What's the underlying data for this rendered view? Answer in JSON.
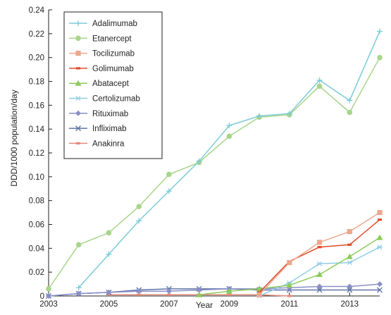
{
  "chart_data": {
    "type": "line",
    "title": "",
    "xlabel": "Year",
    "ylabel": "DDD/1000 population/day",
    "xlim": [
      2003,
      2014
    ],
    "ylim": [
      0,
      0.24
    ],
    "x_ticks": [
      2003,
      2005,
      2007,
      2009,
      2011,
      2013
    ],
    "y_ticks": [
      0,
      0.02,
      0.04,
      0.06,
      0.08,
      0.1,
      0.12,
      0.14,
      0.16,
      0.18,
      0.2,
      0.22,
      0.24
    ],
    "y_tick_labels": [
      "0",
      "0.02",
      "0.04",
      "0.06",
      "0.08",
      "0.10",
      "0.12",
      "0.14",
      "0.16",
      "0.18",
      "0.20",
      "0.22",
      "0.24"
    ],
    "x_tick_labels": [
      "2003",
      "2005",
      "2007",
      "2009",
      "2011",
      "2013"
    ],
    "grid": false,
    "legend_position": "top-left",
    "series": [
      {
        "name": "Adalimumab",
        "color": "#7ccbd6",
        "marker": "plus",
        "x": [
          2004,
          2005,
          2006,
          2007,
          2008,
          2009,
          2010,
          2011,
          2012,
          2013,
          2014
        ],
        "values": [
          0.007,
          0.035,
          0.063,
          0.088,
          0.113,
          0.143,
          0.151,
          0.153,
          0.181,
          0.164,
          0.222
        ]
      },
      {
        "name": "Etanercept",
        "color": "#a8d58a",
        "marker": "circle",
        "x": [
          2003,
          2004,
          2005,
          2006,
          2007,
          2008,
          2009,
          2010,
          2011,
          2012,
          2013,
          2014
        ],
        "values": [
          0.006,
          0.043,
          0.053,
          0.075,
          0.102,
          0.112,
          0.134,
          0.15,
          0.152,
          0.176,
          0.154,
          0.2
        ]
      },
      {
        "name": "Tocilizumab",
        "color": "#eba88c",
        "marker": "square",
        "x": [
          2010,
          2011,
          2012,
          2013,
          2014
        ],
        "values": [
          0.001,
          0.028,
          0.045,
          0.054,
          0.07
        ]
      },
      {
        "name": "Golimumab",
        "color": "#e04a2a",
        "marker": "dash",
        "x": [
          2010,
          2011,
          2012,
          2013,
          2014
        ],
        "values": [
          0.003,
          0.029,
          0.041,
          0.043,
          0.064
        ]
      },
      {
        "name": "Abatacept",
        "color": "#8ccb5c",
        "marker": "triangle",
        "x": [
          2008,
          2009,
          2010,
          2011,
          2012,
          2013,
          2014
        ],
        "values": [
          0.001,
          0.004,
          0.006,
          0.009,
          0.018,
          0.033,
          0.049
        ]
      },
      {
        "name": "Certolizumab",
        "color": "#8fcde6",
        "marker": "asterisk",
        "x": [
          2010,
          2011,
          2012,
          2013,
          2014
        ],
        "values": [
          0.0,
          0.011,
          0.027,
          0.028,
          0.041
        ]
      },
      {
        "name": "Rituximab",
        "color": "#8a8fc6",
        "marker": "diamond",
        "x": [
          2003,
          2004,
          2005,
          2006,
          2007,
          2008,
          2009,
          2010,
          2011,
          2012,
          2013,
          2014
        ],
        "values": [
          0.0,
          0.002,
          0.003,
          0.004,
          0.004,
          0.005,
          0.006,
          0.006,
          0.007,
          0.008,
          0.008,
          0.01
        ]
      },
      {
        "name": "Infliximab",
        "color": "#5f74a8",
        "marker": "x",
        "x": [
          2003,
          2004,
          2005,
          2006,
          2007,
          2008,
          2009,
          2010,
          2011,
          2012,
          2013,
          2014
        ],
        "values": [
          0.0,
          0.002,
          0.003,
          0.005,
          0.006,
          0.006,
          0.006,
          0.005,
          0.005,
          0.005,
          0.005,
          0.005
        ]
      },
      {
        "name": "Anakinra",
        "color": "#e58a7a",
        "marker": "dash",
        "x": [
          2005,
          2006,
          2007,
          2008,
          2009,
          2010,
          2011
        ],
        "values": [
          0.001,
          0.001,
          0.001,
          0.001,
          0.001,
          0.001,
          0.0
        ]
      }
    ]
  }
}
